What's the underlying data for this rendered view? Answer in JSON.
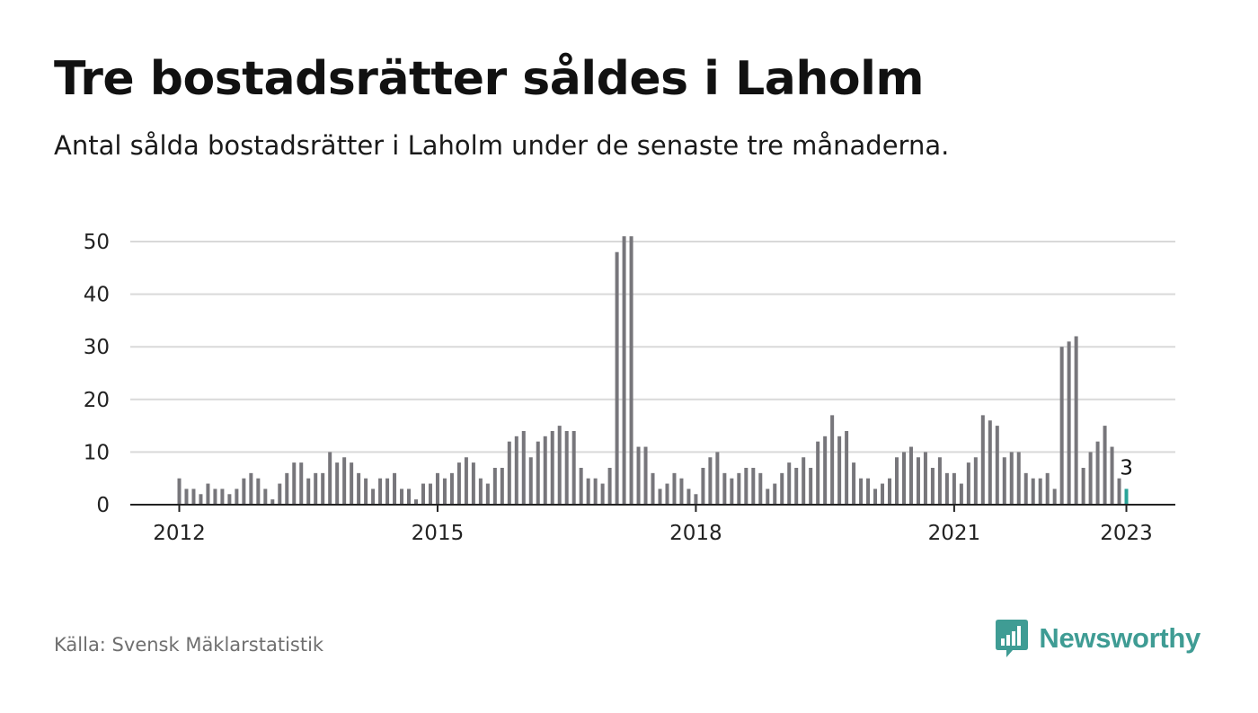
{
  "title": "Tre bostadsrätter såldes i Laholm",
  "subtitle": "Antal sålda bostadsrätter i Laholm under de senaste tre månaderna.",
  "source": "Källa: Svensk Mäklarstatistik",
  "brand": {
    "name": "Newsworthy",
    "icon": "bar-chart-speech-bubble-icon",
    "color": "#3f9c94"
  },
  "colors": {
    "bar": "#77767b",
    "highlight": "#29a398",
    "grid": "#d9d9d9",
    "axis": "#222222"
  },
  "chart_data": {
    "type": "bar",
    "start": "2012-01",
    "end": "2023-01",
    "values": [
      5,
      3,
      3,
      2,
      4,
      3,
      3,
      2,
      3,
      5,
      6,
      5,
      3,
      1,
      4,
      6,
      8,
      8,
      5,
      6,
      6,
      10,
      8,
      9,
      8,
      6,
      5,
      3,
      5,
      5,
      6,
      3,
      3,
      1,
      4,
      4,
      6,
      5,
      6,
      8,
      9,
      8,
      5,
      4,
      7,
      7,
      12,
      13,
      14,
      9,
      12,
      13,
      14,
      15,
      14,
      14,
      7,
      5,
      5,
      4,
      7,
      48,
      51,
      51,
      11,
      11,
      6,
      3,
      4,
      6,
      5,
      3,
      2,
      7,
      9,
      10,
      6,
      5,
      6,
      7,
      7,
      6,
      3,
      4,
      6,
      8,
      7,
      9,
      7,
      12,
      13,
      17,
      13,
      14,
      8,
      5,
      5,
      3,
      4,
      5,
      9,
      10,
      11,
      9,
      10,
      7,
      9,
      6,
      6,
      4,
      8,
      9,
      17,
      16,
      15,
      9,
      10,
      10,
      6,
      5,
      5,
      6,
      3,
      30,
      31,
      32,
      7,
      10,
      12,
      15,
      11,
      5,
      3
    ],
    "highlight_last": true,
    "data_labels": [
      {
        "index": 132,
        "text": "3"
      }
    ],
    "x_ticks": [
      "2012",
      "2015",
      "2018",
      "2021",
      "2023"
    ],
    "y_ticks": [
      0,
      10,
      20,
      30,
      40,
      50
    ],
    "ylim": [
      0,
      50
    ],
    "grid": true
  }
}
